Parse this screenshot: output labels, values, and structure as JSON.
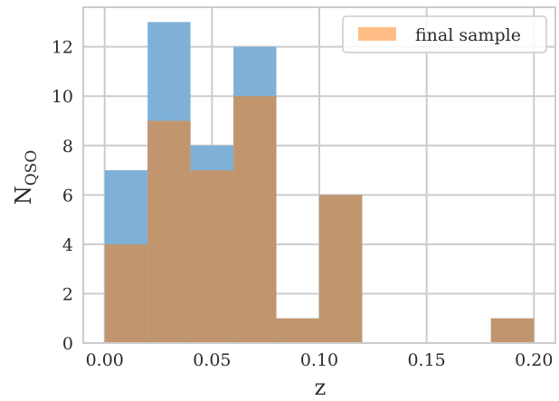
{
  "chart_data": {
    "type": "bar",
    "subtype": "histogram",
    "xlabel": "z",
    "ylabel_main": "N",
    "ylabel_sub": "QSO",
    "xlim": [
      -0.01,
      0.21
    ],
    "ylim": [
      0,
      13.6
    ],
    "xticks": [
      0.0,
      0.05,
      0.1,
      0.15,
      0.2
    ],
    "xtick_labels": [
      "0.00",
      "0.05",
      "0.10",
      "0.15",
      "0.20"
    ],
    "yticks": [
      0,
      2,
      4,
      6,
      8,
      10,
      12
    ],
    "ytick_labels": [
      "0",
      "2",
      "4",
      "6",
      "8",
      "10",
      "12"
    ],
    "grid": true,
    "legend_position": "top-right",
    "bin_edges": [
      0.0,
      0.02,
      0.04,
      0.06,
      0.08,
      0.1,
      0.12,
      0.14,
      0.16,
      0.18,
      0.2
    ],
    "series": [
      {
        "values": [
          7,
          13,
          8,
          12,
          1,
          6,
          0,
          0,
          0,
          1
        ],
        "color": "#7fb1d8"
      },
      {
        "name": "final sample",
        "values": [
          4,
          9,
          7,
          10,
          1,
          6,
          0,
          0,
          0,
          1
        ],
        "color": "#c1966f"
      }
    ],
    "legend_swatch_color": "#ffbe86"
  }
}
